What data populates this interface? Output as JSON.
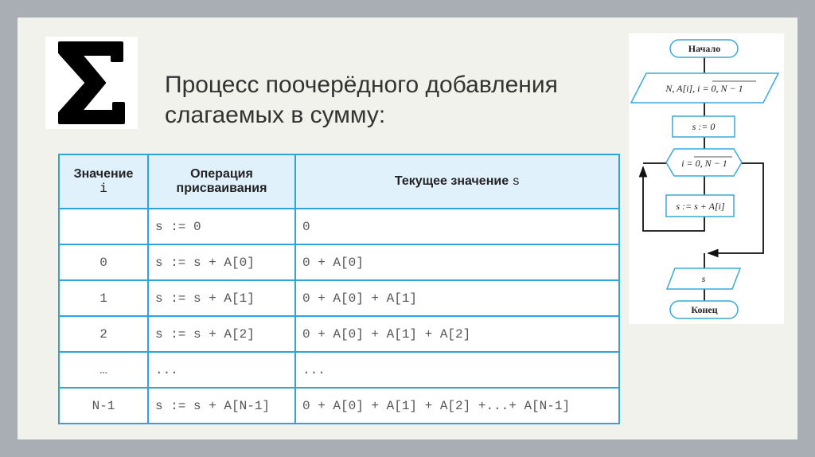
{
  "title_lines": [
    "Процесс поочерёдного добавления",
    "слагаемых в сумму:"
  ],
  "sigma_icon": "sigma-summation-icon",
  "table": {
    "headers": {
      "i_line1": "Значение",
      "i_line2": "i",
      "op_line1": "Операция",
      "op_line2": "присваивания",
      "s_text": "Текущее значение ",
      "s_var": "s"
    },
    "rows": [
      {
        "i": "",
        "op": "s := 0",
        "val": "0"
      },
      {
        "i": "0",
        "op": "s := s + A[0]",
        "val": "0 + A[0]"
      },
      {
        "i": "1",
        "op": "s := s + A[1]",
        "val": "0 + A[0] + A[1]"
      },
      {
        "i": "2",
        "op": "s := s + A[2]",
        "val": "0 + A[0] + A[1] + A[2]"
      },
      {
        "i": "…",
        "op": "...",
        "val": "..."
      },
      {
        "i": "N-1",
        "op": "s := s + A[N-1]",
        "val": "0 + A[0] + A[1] + A[2] +...+ A[N-1]"
      }
    ]
  },
  "flowchart": {
    "start": "Начало",
    "input": "N, A[i], i = 0, N − 1",
    "init": "s := 0",
    "loop": "i = 0, N − 1",
    "body": "s := s + A[i]",
    "output": "s",
    "end": "Конец"
  },
  "colors": {
    "border": "#2ea3dc",
    "header_bg": "#e0f1fb"
  }
}
